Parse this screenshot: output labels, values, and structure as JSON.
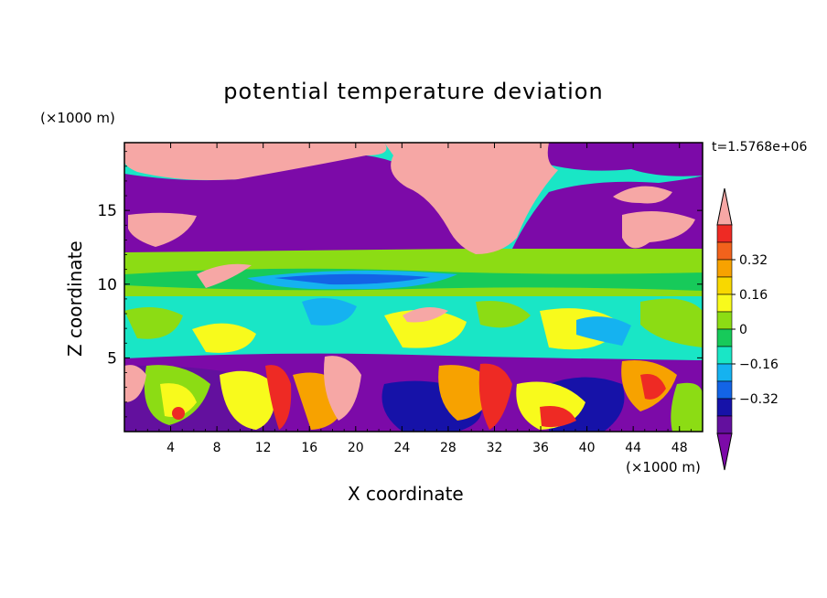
{
  "title": "potential temperature deviation",
  "time_label": "t=1.5768e+06",
  "chart_data": {
    "type": "heatmap",
    "title": "potential temperature deviation",
    "xlabel": "X coordinate",
    "ylabel": "Z coordinate",
    "x_unit": "(×1000 m)",
    "y_unit": "(×1000 m)",
    "x_ticks": [
      4,
      8,
      12,
      16,
      20,
      24,
      28,
      32,
      36,
      40,
      44,
      48
    ],
    "y_ticks": [
      5,
      10,
      15
    ],
    "xlim": [
      0,
      50
    ],
    "ylim": [
      0,
      19.6
    ],
    "colorbar": {
      "labels": [
        0.32,
        0.16,
        0,
        -0.16,
        -0.32
      ],
      "label_text": [
        "0.32",
        "0.16",
        "0",
        "−0.16",
        "−0.32"
      ],
      "levels": [
        0.4,
        0.32,
        0.24,
        0.16,
        0.08,
        0,
        -0.08,
        -0.16,
        -0.24,
        -0.32,
        -0.4
      ],
      "colors": [
        "#f6a7a5",
        "#ee2a24",
        "#f2621c",
        "#f7a200",
        "#f8d800",
        "#f8fa1c",
        "#8cdc14",
        "#17ca5a",
        "#19e6c6",
        "#15b2f0",
        "#1364e6",
        "#1612a8",
        "#63109e",
        "#7c0aa8"
      ]
    }
  }
}
